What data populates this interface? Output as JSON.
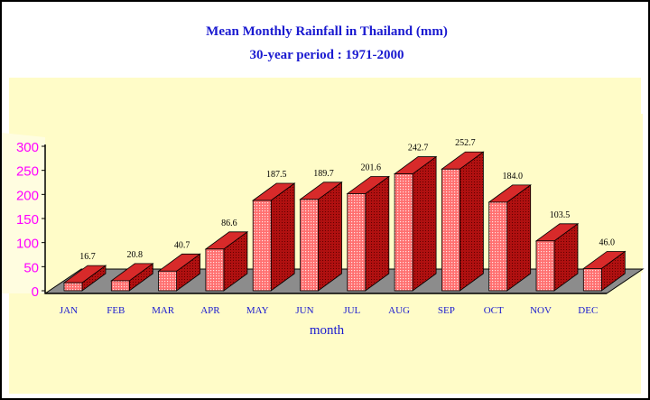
{
  "chart_data": {
    "type": "bar",
    "title": "Mean Monthly Rainfall in Thailand (mm)",
    "subtitle": "30-year period : 1971-2000",
    "xlabel": "month",
    "ylabel": "",
    "ylim": [
      0,
      300
    ],
    "yticks": [
      "0",
      "50",
      "100",
      "150",
      "200",
      "250",
      "300"
    ],
    "categories": [
      "JAN",
      "FEB",
      "MAR",
      "APR",
      "MAY",
      "JUN",
      "JUL",
      "AUG",
      "SEP",
      "OCT",
      "NOV",
      "DEC"
    ],
    "values": [
      16.7,
      20.8,
      40.7,
      86.6,
      187.5,
      189.7,
      201.6,
      242.7,
      252.7,
      184.0,
      103.5,
      46.0
    ],
    "value_labels": [
      "16.7",
      "20.8",
      "40.7",
      "86.6",
      "187.5",
      "189.7",
      "201.6",
      "242.7",
      "252.7",
      "184.0",
      "103.5",
      "46.0"
    ],
    "grid": false,
    "legend": "none",
    "style": "3d",
    "colors": {
      "bar_front": "#ff5a5a",
      "bar_top": "#d82a2a",
      "bar_side": "#a80000",
      "back_wall": "#fffcc8",
      "floor": "#8c8c8c",
      "title": "#1a1ad0",
      "y_ticks": "#ff00ff"
    }
  }
}
